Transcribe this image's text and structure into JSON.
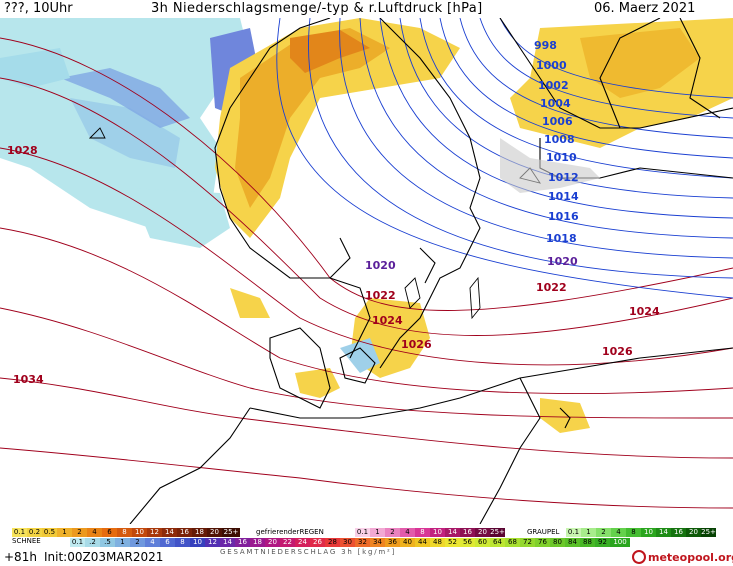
{
  "header": {
    "left": "???, 10Uhr",
    "center": "3h Niederschlagsmenge/-typ & r.Luftdruck [hPa]",
    "right": "06. Maerz 2021"
  },
  "isobars": {
    "blue": [
      "998",
      "1000",
      "1002",
      "1004",
      "1006",
      "1008",
      "1010",
      "1012",
      "1014",
      "1016",
      "1018"
    ],
    "purple": [
      "1020",
      "1020"
    ],
    "red": [
      "1028",
      "1022",
      "1024",
      "1026",
      "1022",
      "1024",
      "1026",
      "1034"
    ]
  },
  "legend": {
    "rain_label": "",
    "rain_scale": [
      "0.1",
      "0.2",
      "0.5",
      "1",
      "2",
      "4",
      "6",
      "8",
      "10",
      "12",
      "14",
      "16",
      "18",
      "20",
      "25+"
    ],
    "snow_label": "SCHNEE",
    "snow_scale": [
      "0.1",
      ".2",
      ".5",
      "1",
      "2",
      "4",
      "6",
      "8",
      "10",
      "12",
      "14",
      "16",
      "18",
      "20",
      "22",
      "24",
      "26",
      "28",
      "30",
      "32",
      "34",
      "36",
      "40",
      "44",
      "48",
      "52",
      "56",
      "60",
      "64",
      "68",
      "72",
      "76",
      "80",
      "84",
      "88",
      "92",
      "96",
      "100"
    ],
    "freezing_label": "gefrierenderREGEN",
    "freezing_scale": [
      "0.1",
      "1",
      "2",
      "4",
      "8",
      "10",
      "14",
      "16",
      "20",
      "25+"
    ],
    "graupel_label": "GRAUPEL",
    "graupel_scale": [
      "0.1",
      "1",
      "2",
      "4",
      "8",
      "10",
      "14",
      "16",
      "20",
      "25+"
    ],
    "total_label": "GESAMTNIEDERSCHLAG 3h [kg/m²]"
  },
  "footer": {
    "run": "+81h",
    "init": "Init:00Z03MAR2021",
    "brand": "meteopool.org"
  },
  "colors": {
    "rain": [
      "#f6e25a",
      "#f3c938",
      "#efb12a",
      "#ec9a1f",
      "#e98316",
      "#e66c10",
      "#d55a0e",
      "#c2480c",
      "#a8380b",
      "#8d2a0a"
    ],
    "snow": [
      "#bfeaf0",
      "#a8dbe8",
      "#8fc7e2",
      "#7fb0e0",
      "#6f98de",
      "#5f7fd9"
    ],
    "freezing": [
      "#f9d0e8",
      "#f2a9d4",
      "#ea82c0",
      "#e25bab",
      "#d83696",
      "#c2207f"
    ],
    "graupel": [
      "#c8f5b0",
      "#a8ec8c",
      "#86e06a",
      "#64d14c",
      "#45bd32",
      "#2aa51e"
    ],
    "isobar_blue": "#1a3fd1",
    "isobar_red": "#a0001c",
    "isobar_purple": "#5a1f9a"
  }
}
